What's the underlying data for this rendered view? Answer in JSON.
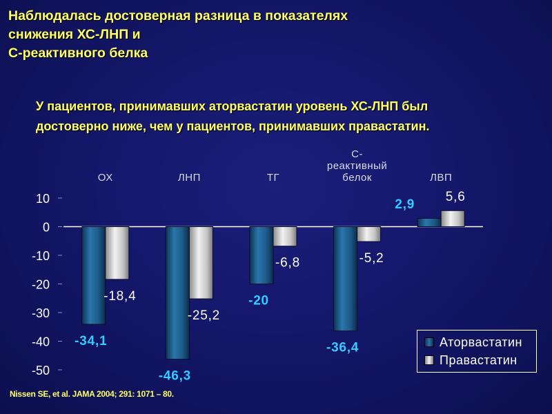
{
  "slide": {
    "title": "Наблюдалась достоверная разница в показателях снижения ХС-ЛНП и С-реактивного белка",
    "title_lines": [
      "Наблюдалась достоверная разница в показателях",
      "снижения ХС-ЛНП и",
      "С-реактивного белка"
    ],
    "subtitle_lines": [
      "У пациентов, принимавших аторвастатин уровень ХС-ЛНП был",
      "достоверно ниже, чем у пациентов, принимавших правастатин."
    ],
    "citation": "Nissen SE, et al. JAMA 2004; 291: 1071 – 80."
  },
  "colors": {
    "title_text": "#ffff66",
    "atorva_label": "#33ccff",
    "prava_label": "#ffffff",
    "atorva_bar": "#1f5f8f",
    "prava_bar": "#bdbdbd"
  },
  "chart_data": {
    "type": "bar",
    "categories": [
      "ОХ",
      "ЛНП",
      "ТГ",
      "С-\nреактивный\nбелок",
      "ЛВП"
    ],
    "series": [
      {
        "name": "Аторвастатин",
        "values": [
          -34.1,
          -46.3,
          -20,
          -36.4,
          2.9
        ],
        "labels": [
          "-34,1",
          "-46,3",
          "-20",
          "-36,4",
          "2,9"
        ]
      },
      {
        "name": "Правастатин",
        "values": [
          -18.4,
          -25.2,
          -6.8,
          -5.2,
          5.6
        ],
        "labels": [
          "-18,4",
          "-25,2",
          "-6,8",
          "-5,2",
          "5,6"
        ]
      }
    ],
    "y_ticks": [
      10,
      0,
      -10,
      -20,
      -30,
      -40,
      -50
    ],
    "ylim": [
      -50,
      10
    ],
    "x_axis_position": "top",
    "legend_position": "bottom-right",
    "grid": false
  }
}
